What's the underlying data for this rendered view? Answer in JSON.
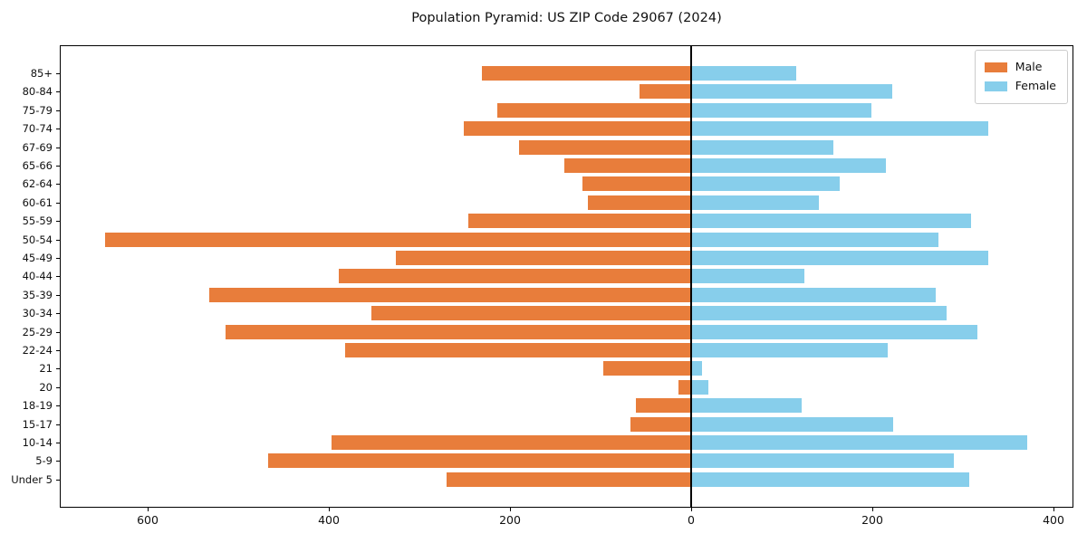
{
  "title": "Population Pyramid: US ZIP Code 29067 (2024)",
  "legend": {
    "male_label": "Male",
    "female_label": "Female",
    "position": "upper right"
  },
  "colors": {
    "male": "#e87d3b",
    "female": "#87ceeb",
    "axis": "#000000",
    "legend_border": "#cccccc",
    "background": "#ffffff"
  },
  "chart_data": {
    "type": "bar",
    "subtype": "population-pyramid",
    "orientation": "horizontal",
    "title": "Population Pyramid: US ZIP Code 29067 (2024)",
    "categories": [
      "85+",
      "80-84",
      "75-79",
      "70-74",
      "67-69",
      "65-66",
      "62-64",
      "60-61",
      "55-59",
      "50-54",
      "45-49",
      "40-44",
      "35-39",
      "30-34",
      "25-29",
      "22-24",
      "21",
      "20",
      "18-19",
      "15-17",
      "10-14",
      "5-9",
      "Under 5"
    ],
    "series": [
      {
        "name": "Male",
        "side": "left",
        "color": "#e87d3b",
        "values": [
          231,
          57,
          214,
          251,
          190,
          140,
          120,
          114,
          246,
          647,
          326,
          389,
          532,
          353,
          514,
          382,
          97,
          14,
          61,
          67,
          397,
          467,
          270
        ]
      },
      {
        "name": "Female",
        "side": "right",
        "color": "#87ceeb",
        "values": [
          116,
          222,
          199,
          328,
          157,
          215,
          164,
          141,
          309,
          273,
          328,
          125,
          270,
          282,
          316,
          217,
          12,
          19,
          122,
          223,
          371,
          290,
          307
        ]
      }
    ],
    "x_tick_labels": [
      "600",
      "400",
      "200",
      "0",
      "200",
      "400"
    ],
    "x_tick_values": [
      -600,
      -400,
      -200,
      0,
      200,
      400
    ],
    "xlim": [
      -697,
      422
    ],
    "xlabel": "",
    "ylabel": "",
    "grid": false,
    "legend_position": "upper right"
  }
}
